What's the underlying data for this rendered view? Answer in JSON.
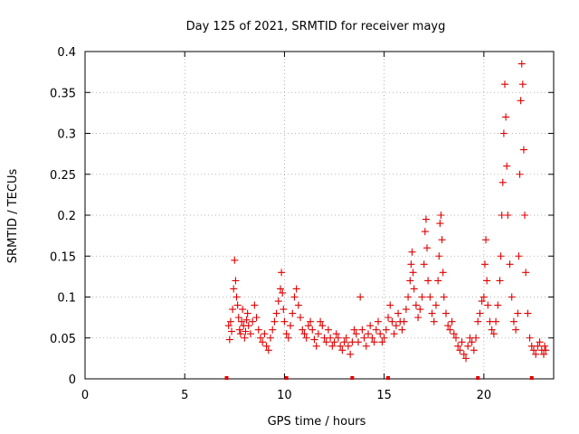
{
  "chart_data": {
    "type": "scatter",
    "title": "Day 125 of 2021, SRMTID for receiver mayg",
    "xlabel": "GPS time / hours",
    "ylabel": "SRMTID / TECUs",
    "xlim": [
      0,
      23.5
    ],
    "ylim": [
      0,
      0.4
    ],
    "xticks": [
      0,
      5,
      10,
      15,
      20
    ],
    "xtick_labels": [
      "0",
      "5",
      "10",
      "15",
      "20"
    ],
    "yticks": [
      0,
      0.05,
      0.1,
      0.15,
      0.2,
      0.25,
      0.3,
      0.35,
      0.4
    ],
    "ytick_labels": [
      "0",
      "0.05",
      "0.1",
      "0.15",
      "0.2",
      "0.25",
      "0.3",
      "0.35",
      "0.4"
    ],
    "grid": true,
    "marker": "+",
    "color": "#e00000",
    "series": [
      {
        "name": "SRMTID",
        "points": [
          [
            7.2,
            0.065
          ],
          [
            7.25,
            0.048
          ],
          [
            7.3,
            0.07
          ],
          [
            7.35,
            0.058
          ],
          [
            7.4,
            0.085
          ],
          [
            7.45,
            0.11
          ],
          [
            7.5,
            0.145
          ],
          [
            7.55,
            0.12
          ],
          [
            7.6,
            0.1
          ],
          [
            7.65,
            0.09
          ],
          [
            7.7,
            0.075
          ],
          [
            7.75,
            0.06
          ],
          [
            7.8,
            0.055
          ],
          [
            7.85,
            0.07
          ],
          [
            7.9,
            0.085
          ],
          [
            7.95,
            0.065
          ],
          [
            8.0,
            0.05
          ],
          [
            8.05,
            0.058
          ],
          [
            8.1,
            0.072
          ],
          [
            8.15,
            0.08
          ],
          [
            8.2,
            0.065
          ],
          [
            8.3,
            0.055
          ],
          [
            8.4,
            0.07
          ],
          [
            8.5,
            0.09
          ],
          [
            8.6,
            0.075
          ],
          [
            8.7,
            0.06
          ],
          [
            8.8,
            0.05
          ],
          [
            8.9,
            0.045
          ],
          [
            9.0,
            0.055
          ],
          [
            9.1,
            0.04
          ],
          [
            9.2,
            0.035
          ],
          [
            9.3,
            0.05
          ],
          [
            9.4,
            0.06
          ],
          [
            9.5,
            0.07
          ],
          [
            9.6,
            0.08
          ],
          [
            9.7,
            0.095
          ],
          [
            9.8,
            0.11
          ],
          [
            9.85,
            0.13
          ],
          [
            9.9,
            0.105
          ],
          [
            9.95,
            0.085
          ],
          [
            10.0,
            0.07
          ],
          [
            10.1,
            0.055
          ],
          [
            10.2,
            0.05
          ],
          [
            10.3,
            0.065
          ],
          [
            10.4,
            0.08
          ],
          [
            10.5,
            0.1
          ],
          [
            10.6,
            0.11
          ],
          [
            10.7,
            0.09
          ],
          [
            10.8,
            0.075
          ],
          [
            10.9,
            0.06
          ],
          [
            11.0,
            0.055
          ],
          [
            11.1,
            0.05
          ],
          [
            11.2,
            0.065
          ],
          [
            11.3,
            0.07
          ],
          [
            11.4,
            0.06
          ],
          [
            11.5,
            0.048
          ],
          [
            11.6,
            0.04
          ],
          [
            11.7,
            0.055
          ],
          [
            11.8,
            0.07
          ],
          [
            11.9,
            0.065
          ],
          [
            12.0,
            0.05
          ],
          [
            12.1,
            0.045
          ],
          [
            12.2,
            0.06
          ],
          [
            12.3,
            0.05
          ],
          [
            12.4,
            0.04
          ],
          [
            12.5,
            0.045
          ],
          [
            12.6,
            0.055
          ],
          [
            12.7,
            0.05
          ],
          [
            12.8,
            0.04
          ],
          [
            12.9,
            0.035
          ],
          [
            13.0,
            0.045
          ],
          [
            13.1,
            0.05
          ],
          [
            13.2,
            0.04
          ],
          [
            13.3,
            0.03
          ],
          [
            13.4,
            0.045
          ],
          [
            13.5,
            0.06
          ],
          [
            13.6,
            0.055
          ],
          [
            13.7,
            0.045
          ],
          [
            13.8,
            0.1
          ],
          [
            13.9,
            0.06
          ],
          [
            14.0,
            0.05
          ],
          [
            14.1,
            0.04
          ],
          [
            14.2,
            0.055
          ],
          [
            14.3,
            0.065
          ],
          [
            14.4,
            0.05
          ],
          [
            14.5,
            0.045
          ],
          [
            14.6,
            0.06
          ],
          [
            14.7,
            0.07
          ],
          [
            14.8,
            0.055
          ],
          [
            14.9,
            0.045
          ],
          [
            15.0,
            0.05
          ],
          [
            15.1,
            0.06
          ],
          [
            15.2,
            0.075
          ],
          [
            15.3,
            0.09
          ],
          [
            15.4,
            0.07
          ],
          [
            15.5,
            0.055
          ],
          [
            15.6,
            0.065
          ],
          [
            15.7,
            0.08
          ],
          [
            15.8,
            0.07
          ],
          [
            15.9,
            0.06
          ],
          [
            16.0,
            0.07
          ],
          [
            16.1,
            0.085
          ],
          [
            16.2,
            0.1
          ],
          [
            16.3,
            0.12
          ],
          [
            16.35,
            0.14
          ],
          [
            16.4,
            0.155
          ],
          [
            16.45,
            0.13
          ],
          [
            16.5,
            0.11
          ],
          [
            16.6,
            0.09
          ],
          [
            16.7,
            0.075
          ],
          [
            16.8,
            0.085
          ],
          [
            16.9,
            0.1
          ],
          [
            17.0,
            0.14
          ],
          [
            17.05,
            0.18
          ],
          [
            17.1,
            0.195
          ],
          [
            17.15,
            0.16
          ],
          [
            17.2,
            0.12
          ],
          [
            17.3,
            0.1
          ],
          [
            17.4,
            0.08
          ],
          [
            17.5,
            0.07
          ],
          [
            17.6,
            0.09
          ],
          [
            17.7,
            0.12
          ],
          [
            17.75,
            0.15
          ],
          [
            17.8,
            0.19
          ],
          [
            17.85,
            0.2
          ],
          [
            17.9,
            0.17
          ],
          [
            17.95,
            0.13
          ],
          [
            18.0,
            0.1
          ],
          [
            18.1,
            0.08
          ],
          [
            18.2,
            0.065
          ],
          [
            18.3,
            0.06
          ],
          [
            18.4,
            0.07
          ],
          [
            18.5,
            0.055
          ],
          [
            18.6,
            0.05
          ],
          [
            18.7,
            0.04
          ],
          [
            18.8,
            0.035
          ],
          [
            18.9,
            0.045
          ],
          [
            19.0,
            0.03
          ],
          [
            19.1,
            0.025
          ],
          [
            19.2,
            0.04
          ],
          [
            19.3,
            0.05
          ],
          [
            19.4,
            0.045
          ],
          [
            19.5,
            0.035
          ],
          [
            19.6,
            0.05
          ],
          [
            19.7,
            0.07
          ],
          [
            19.8,
            0.08
          ],
          [
            19.9,
            0.095
          ],
          [
            20.0,
            0.1
          ],
          [
            20.05,
            0.14
          ],
          [
            20.1,
            0.17
          ],
          [
            20.15,
            0.12
          ],
          [
            20.2,
            0.09
          ],
          [
            20.3,
            0.07
          ],
          [
            20.4,
            0.06
          ],
          [
            20.5,
            0.055
          ],
          [
            20.6,
            0.07
          ],
          [
            20.7,
            0.09
          ],
          [
            20.8,
            0.12
          ],
          [
            20.85,
            0.15
          ],
          [
            20.9,
            0.2
          ],
          [
            20.95,
            0.24
          ],
          [
            21.0,
            0.3
          ],
          [
            21.05,
            0.36
          ],
          [
            21.1,
            0.32
          ],
          [
            21.15,
            0.26
          ],
          [
            21.2,
            0.2
          ],
          [
            21.3,
            0.14
          ],
          [
            21.4,
            0.1
          ],
          [
            21.5,
            0.07
          ],
          [
            21.6,
            0.06
          ],
          [
            21.7,
            0.08
          ],
          [
            21.75,
            0.15
          ],
          [
            21.8,
            0.25
          ],
          [
            21.85,
            0.34
          ],
          [
            21.9,
            0.385
          ],
          [
            21.95,
            0.36
          ],
          [
            22.0,
            0.28
          ],
          [
            22.05,
            0.2
          ],
          [
            22.1,
            0.13
          ],
          [
            22.2,
            0.08
          ],
          [
            22.3,
            0.05
          ],
          [
            22.4,
            0.04
          ],
          [
            22.5,
            0.035
          ],
          [
            22.6,
            0.03
          ],
          [
            22.7,
            0.04
          ],
          [
            22.8,
            0.045
          ],
          [
            22.9,
            0.035
          ],
          [
            23.0,
            0.03
          ],
          [
            23.05,
            0.04
          ],
          [
            23.1,
            0.035
          ]
        ]
      }
    ],
    "zero_markers_x": [
      7.1,
      10.1,
      13.4,
      15.2,
      19.7,
      22.4
    ]
  }
}
